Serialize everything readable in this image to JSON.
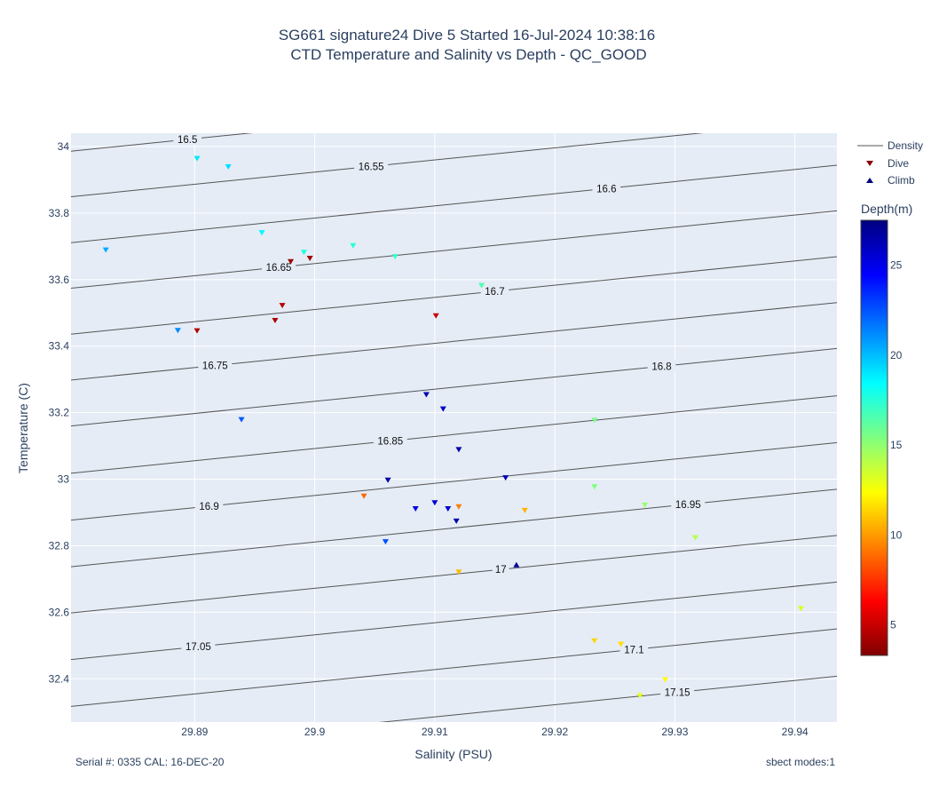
{
  "chart_data": {
    "type": "scatter",
    "title_lines": [
      "SG661 signature24 Dive 5 Started 16-Jul-2024 10:38:16",
      "CTD Temperature and Salinity vs Depth - QC_GOOD"
    ],
    "xlabel": "Salinity (PSU)",
    "ylabel": "Temperature (C)",
    "xlim": [
      29.8797,
      29.9435
    ],
    "ylim": [
      32.27,
      34.04
    ],
    "x_ticks": [
      {
        "value": 29.89,
        "label": "29.89"
      },
      {
        "value": 29.9,
        "label": "29.9"
      },
      {
        "value": 29.91,
        "label": "29.91"
      },
      {
        "value": 29.92,
        "label": "29.92"
      },
      {
        "value": 29.93,
        "label": "29.93"
      },
      {
        "value": 29.94,
        "label": "29.94"
      }
    ],
    "y_ticks": [
      {
        "value": 32.4,
        "label": "32.4"
      },
      {
        "value": 32.6,
        "label": "32.6"
      },
      {
        "value": 32.8,
        "label": "32.8"
      },
      {
        "value": 33.0,
        "label": "33"
      },
      {
        "value": 33.2,
        "label": "33.2"
      },
      {
        "value": 33.4,
        "label": "33.4"
      },
      {
        "value": 33.6,
        "label": "33.6"
      },
      {
        "value": 33.8,
        "label": "33.8"
      },
      {
        "value": 34.0,
        "label": "34"
      }
    ],
    "grid": true,
    "background_color": "#e5ecf6",
    "density_contours": {
      "name": "Density",
      "color": "#555555",
      "levels": [
        "16.5",
        "16.55",
        "16.6",
        "16.65",
        "16.7",
        "16.75",
        "16.8",
        "16.85",
        "16.9",
        "16.95",
        "17",
        "17.05",
        "17.1",
        "17.15"
      ],
      "intercepts_T_at_xmin": [
        33.986,
        33.849,
        33.711,
        33.574,
        33.436,
        33.298,
        33.16,
        33.018,
        32.877,
        32.737,
        32.598,
        32.458,
        32.317,
        32.175
      ],
      "slope_T_per_PSU": 3.65,
      "label_salinity": [
        29.8894,
        29.9047,
        29.9243,
        29.897,
        29.915,
        29.8917,
        29.9289,
        29.9063,
        29.8912,
        29.9311,
        29.9155,
        29.8903,
        29.9266,
        29.9302
      ]
    },
    "legend": {
      "position": "top-right",
      "entries": [
        {
          "name": "Density",
          "symbol": "line"
        },
        {
          "name": "Dive",
          "symbol": "triangle-down"
        },
        {
          "name": "Climb",
          "symbol": "triangle-up"
        }
      ]
    },
    "colorbar": {
      "title": "Depth(m)",
      "range": [
        3.3,
        27.5
      ],
      "ticks": [
        5,
        10,
        15,
        20,
        25
      ],
      "colorscale": "Jet (reversed)"
    },
    "series": [
      {
        "name": "Dive",
        "symbol": "triangle-down",
        "points": [
          {
            "s": 29.898,
            "t": 33.655,
            "depth": 4.0
          },
          {
            "s": 29.8996,
            "t": 33.665,
            "depth": 4.1
          },
          {
            "s": 29.8973,
            "t": 33.523,
            "depth": 4.5
          },
          {
            "s": 29.8967,
            "t": 33.478,
            "depth": 4.3
          },
          {
            "s": 29.8902,
            "t": 33.447,
            "depth": 4.4
          },
          {
            "s": 29.9101,
            "t": 33.492,
            "depth": 5.0
          },
          {
            "s": 29.8902,
            "t": 33.965,
            "depth": 19.0
          },
          {
            "s": 29.8928,
            "t": 33.94,
            "depth": 19.2
          },
          {
            "s": 29.8956,
            "t": 33.742,
            "depth": 18.6
          },
          {
            "s": 29.8991,
            "t": 33.683,
            "depth": 17.8
          },
          {
            "s": 29.9032,
            "t": 33.703,
            "depth": 17.5
          },
          {
            "s": 29.9067,
            "t": 33.67,
            "depth": 17.2
          },
          {
            "s": 29.8826,
            "t": 33.69,
            "depth": 20.4
          },
          {
            "s": 29.8886,
            "t": 33.448,
            "depth": 21.2
          },
          {
            "s": 29.9139,
            "t": 33.583,
            "depth": 16.6
          },
          {
            "s": 29.8939,
            "t": 33.18,
            "depth": 22.4
          },
          {
            "s": 29.9093,
            "t": 33.255,
            "depth": 26.4
          },
          {
            "s": 29.9107,
            "t": 33.212,
            "depth": 26.0
          },
          {
            "s": 29.912,
            "t": 33.09,
            "depth": 26.5
          },
          {
            "s": 29.9061,
            "t": 32.998,
            "depth": 26.6
          },
          {
            "s": 29.9159,
            "t": 33.005,
            "depth": 26.3
          },
          {
            "s": 29.9041,
            "t": 32.95,
            "depth": 8.8
          },
          {
            "s": 29.9084,
            "t": 32.912,
            "depth": 25.1
          },
          {
            "s": 29.91,
            "t": 32.93,
            "depth": 25.6
          },
          {
            "s": 29.9111,
            "t": 32.912,
            "depth": 25.7
          },
          {
            "s": 29.912,
            "t": 32.918,
            "depth": 9.3
          },
          {
            "s": 29.9118,
            "t": 32.875,
            "depth": 26.4
          },
          {
            "s": 29.9175,
            "t": 32.907,
            "depth": 10.6
          },
          {
            "s": 29.9059,
            "t": 32.813,
            "depth": 22.6
          },
          {
            "s": 29.912,
            "t": 32.722,
            "depth": 10.8
          },
          {
            "s": 29.9233,
            "t": 33.178,
            "depth": 15.6
          },
          {
            "s": 29.9233,
            "t": 32.978,
            "depth": 15.4
          },
          {
            "s": 29.9275,
            "t": 32.923,
            "depth": 14.8
          },
          {
            "s": 29.9317,
            "t": 32.825,
            "depth": 14.1
          },
          {
            "s": 29.9405,
            "t": 32.612,
            "depth": 13.2
          },
          {
            "s": 29.9233,
            "t": 32.515,
            "depth": 11.4
          },
          {
            "s": 29.9255,
            "t": 32.505,
            "depth": 11.6
          },
          {
            "s": 29.9292,
            "t": 32.398,
            "depth": 12.3
          },
          {
            "s": 29.9271,
            "t": 32.35,
            "depth": 13.0
          }
        ]
      },
      {
        "name": "Climb",
        "symbol": "triangle-up",
        "points": [
          {
            "s": 29.9168,
            "t": 32.742,
            "depth": 26.8
          }
        ]
      }
    ]
  },
  "footer": {
    "left": "Serial #: 0335  CAL: 16-DEC-20",
    "right": "sbect modes:1"
  }
}
